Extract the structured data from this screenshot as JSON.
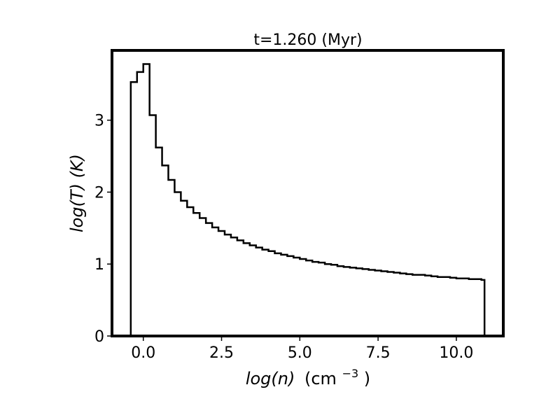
{
  "chart_data": {
    "type": "line",
    "style": "step",
    "title": "t=1.260 (Myr)",
    "xlabel_math": "log(n)",
    "xlabel_unit_base": "(cm",
    "xlabel_unit_exp": "−3",
    "xlabel_unit_close": ")",
    "ylabel": "log(T) (K)",
    "xlim": [
      -1.0,
      11.5
    ],
    "ylim": [
      0,
      3.97
    ],
    "xticks": [
      0.0,
      2.5,
      5.0,
      7.5,
      10.0
    ],
    "xtick_labels": [
      "0.0",
      "2.5",
      "5.0",
      "7.5",
      "10.0"
    ],
    "yticks": [
      0,
      1,
      2,
      3
    ],
    "ytick_labels": [
      "0",
      "1",
      "2",
      "3"
    ],
    "grid": false,
    "series": [
      {
        "color": "#000000",
        "bin_edges": [
          -0.4,
          -0.2,
          0.0,
          0.2,
          0.4,
          0.6,
          0.8,
          1.0,
          1.2,
          1.4,
          1.6,
          1.8,
          2.0,
          2.2,
          2.4,
          2.6,
          2.8,
          3.0,
          3.2,
          3.4,
          3.6,
          3.8,
          4.0,
          4.2,
          4.4,
          4.6,
          4.8,
          5.0,
          5.2,
          5.4,
          5.6,
          5.8,
          6.0,
          6.2,
          6.4,
          6.6,
          6.8,
          7.0,
          7.2,
          7.4,
          7.6,
          7.8,
          8.0,
          8.2,
          8.4,
          8.6,
          8.8,
          9.0,
          9.2,
          9.4,
          9.6,
          9.8,
          10.0,
          10.2,
          10.4,
          10.6,
          10.8,
          10.9
        ],
        "values": [
          3.53,
          3.67,
          3.78,
          3.07,
          2.62,
          2.37,
          2.17,
          2.0,
          1.88,
          1.79,
          1.71,
          1.64,
          1.57,
          1.51,
          1.46,
          1.41,
          1.37,
          1.33,
          1.29,
          1.26,
          1.23,
          1.2,
          1.18,
          1.15,
          1.13,
          1.11,
          1.09,
          1.07,
          1.05,
          1.03,
          1.02,
          1.0,
          0.99,
          0.97,
          0.96,
          0.95,
          0.94,
          0.93,
          0.92,
          0.91,
          0.9,
          0.89,
          0.88,
          0.87,
          0.86,
          0.85,
          0.85,
          0.84,
          0.83,
          0.82,
          0.82,
          0.81,
          0.8,
          0.8,
          0.79,
          0.79,
          0.78
        ]
      }
    ]
  }
}
